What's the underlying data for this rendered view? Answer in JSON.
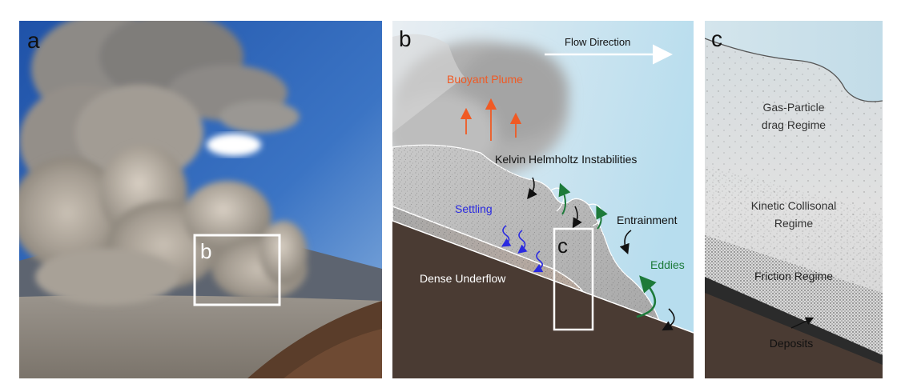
{
  "panels": {
    "a": {
      "letter": "a",
      "inset_letter": "b"
    },
    "b": {
      "letter": "b",
      "inset_letter": "c",
      "flow_direction": "Flow Direction",
      "buoyant_plume": "Buoyant Plume",
      "kelvin_helmholtz": "Kelvin Helmholtz Instabilities",
      "settling": "Settling",
      "entrainment": "Entrainment",
      "eddies": "Eddies",
      "dense_underflow": "Dense Underflow"
    },
    "c": {
      "letter": "c",
      "gas_particle_line1": "Gas-Particle",
      "gas_particle_line2": "drag Regime",
      "kinetic_line1": "Kinetic Collisonal",
      "kinetic_line2": "Regime",
      "friction": "Friction Regime",
      "deposits": "Deposits"
    }
  },
  "colors": {
    "sky": "#2f63b4",
    "ground": "#4a3b33",
    "plume_orange": "#f05a24",
    "settling_blue": "#2a2ae0",
    "eddy_green": "#1d7a3a",
    "label_dark": "#222222"
  }
}
